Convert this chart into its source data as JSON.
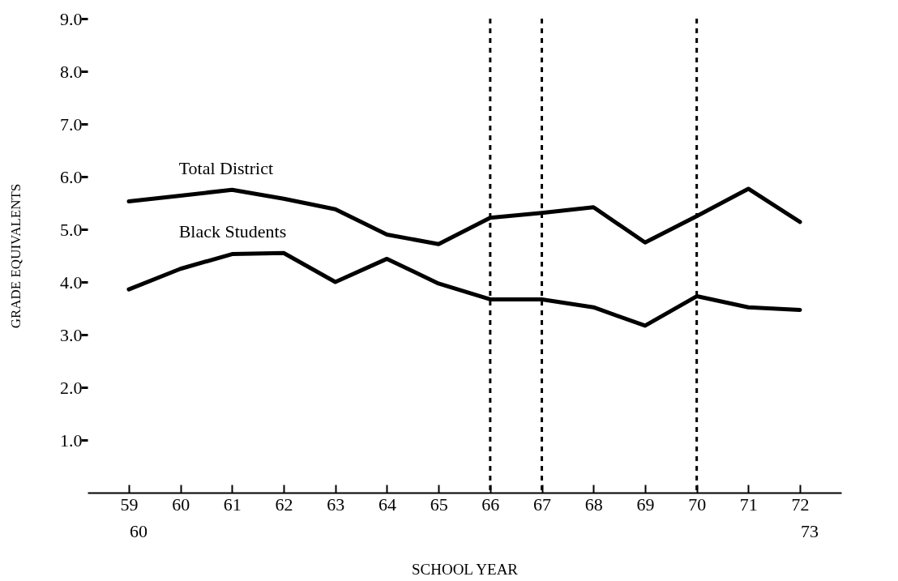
{
  "chart_data": {
    "type": "line",
    "xlabel": "SCHOOL  YEAR",
    "ylabel": "GRADE EQUIVALENTS",
    "categories": [
      "59",
      "60",
      "61",
      "62",
      "63",
      "64",
      "65",
      "66",
      "67",
      "68",
      "69",
      "70",
      "71",
      "72"
    ],
    "series": [
      {
        "name": "Total District",
        "color": "#000000",
        "values": [
          5.53,
          5.64,
          5.75,
          5.58,
          5.38,
          4.9,
          4.72,
          5.22,
          5.31,
          5.42,
          4.75,
          5.25,
          5.77,
          5.14
        ]
      },
      {
        "name": "Black Students",
        "color": "#000000",
        "values": [
          3.86,
          4.25,
          4.53,
          4.55,
          4.0,
          4.44,
          3.97,
          3.67,
          3.67,
          3.52,
          3.17,
          3.73,
          3.52,
          3.47
        ]
      }
    ],
    "ylim": [
      0,
      9
    ],
    "yticks": [
      {
        "value": 1,
        "label": "1.0"
      },
      {
        "value": 2,
        "label": "2.0"
      },
      {
        "value": 3,
        "label": "3.0"
      },
      {
        "value": 4,
        "label": "4.0"
      },
      {
        "value": 5,
        "label": "5.0"
      },
      {
        "value": 6,
        "label": "6.0"
      },
      {
        "value": 7,
        "label": "7.0"
      },
      {
        "value": 8,
        "label": "8.0"
      },
      {
        "value": 9,
        "label": "9.0"
      }
    ],
    "ref_lines": [
      {
        "axis": "x",
        "value": "66",
        "color": "#000000",
        "line_style": "dashed"
      },
      {
        "axis": "x",
        "value": "67",
        "color": "#000000",
        "line_style": "dashed"
      },
      {
        "axis": "x",
        "value": "70",
        "color": "#000000",
        "line_style": "dashed"
      }
    ],
    "annotations": [
      "60",
      "73"
    ],
    "grid": false,
    "legend": false,
    "line_style": "solid",
    "marker": "none"
  }
}
